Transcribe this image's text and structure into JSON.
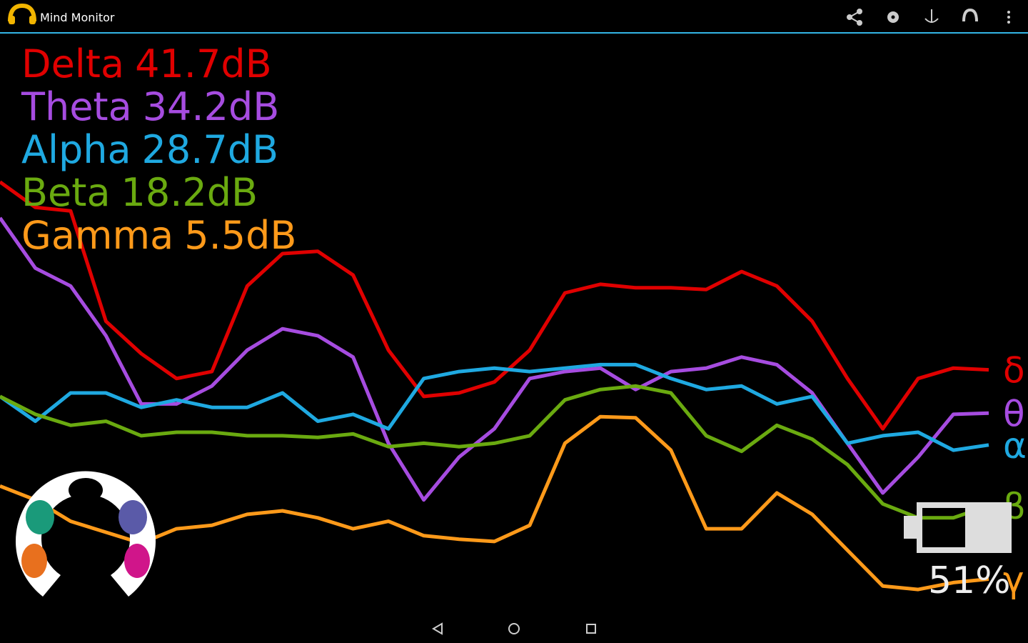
{
  "app": {
    "title": "Mind Monitor",
    "battery": "51%"
  },
  "chart_data": {
    "type": "line",
    "ylim": [
      0,
      100
    ],
    "series": [
      {
        "name": "Delta",
        "readout": "41.7dB",
        "symbol": "δ",
        "color": "#e00000",
        "values": [
          74.2,
          69.8,
          69.2,
          50.1,
          44.5,
          40.2,
          41.4,
          56.2,
          61.8,
          62.2,
          58.1,
          45.1,
          37.1,
          37.7,
          39.6,
          45.1,
          55.0,
          56.5,
          55.9,
          55.9,
          55.6,
          58.7,
          56.2,
          50.1,
          40.2,
          31.5,
          40.2,
          42.0,
          41.7
        ]
      },
      {
        "name": "Theta",
        "readout": "34.2dB",
        "symbol": "θ",
        "color": "#a64ce0",
        "values": [
          68.0,
          59.3,
          56.2,
          47.6,
          35.8,
          35.8,
          38.9,
          45.1,
          48.8,
          47.6,
          43.9,
          29.0,
          19.2,
          26.6,
          31.5,
          40.2,
          41.4,
          42.0,
          38.3,
          41.4,
          42.0,
          43.9,
          42.6,
          37.7,
          29.0,
          20.4,
          26.6,
          34.0,
          34.2
        ]
      },
      {
        "name": "Alpha",
        "readout": "28.7dB",
        "symbol": "α",
        "color": "#1fa9e1",
        "values": [
          37.1,
          32.8,
          37.7,
          37.7,
          35.2,
          36.5,
          35.2,
          35.2,
          37.7,
          32.8,
          34.0,
          31.5,
          40.2,
          41.4,
          42.0,
          41.4,
          42.0,
          42.6,
          42.6,
          40.2,
          38.3,
          38.9,
          35.8,
          37.1,
          29.0,
          30.3,
          30.9,
          27.8,
          28.7
        ]
      },
      {
        "name": "Beta",
        "readout": "18.2dB",
        "symbol": "β",
        "color": "#6aaa10",
        "values": [
          37.1,
          34.0,
          32.1,
          32.8,
          30.3,
          30.9,
          30.9,
          30.3,
          30.3,
          30.0,
          30.6,
          28.4,
          29.0,
          28.4,
          29.0,
          30.3,
          36.5,
          38.3,
          38.9,
          37.7,
          30.3,
          27.6,
          32.1,
          29.7,
          25.3,
          18.5,
          16.1,
          16.1,
          18.2
        ]
      },
      {
        "name": "Gamma",
        "readout": "5.5dB",
        "symbol": "γ",
        "color": "#ff9a1a",
        "values": [
          21.6,
          19.2,
          15.5,
          13.6,
          11.7,
          14.2,
          14.8,
          16.7,
          17.3,
          16.1,
          14.2,
          15.5,
          13.0,
          12.4,
          12.0,
          14.8,
          29.0,
          33.6,
          33.4,
          27.8,
          14.2,
          14.2,
          20.4,
          16.7,
          10.5,
          4.3,
          3.7,
          4.9,
          5.5
        ]
      }
    ]
  }
}
